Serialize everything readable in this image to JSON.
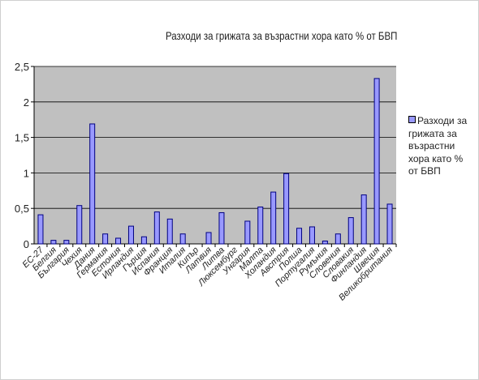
{
  "chart_data": {
    "type": "bar",
    "title": "Разходи за грижата за възрастни хора като % от БВП",
    "xlabel": "",
    "ylabel": "",
    "ylim": [
      0,
      2.5
    ],
    "yticks": [
      "0",
      "0,5",
      "1",
      "1,5",
      "2",
      "2,5"
    ],
    "grid": true,
    "legend_position": "right",
    "categories": [
      "ЕС-27",
      "Белгия",
      "България",
      "Чехия",
      "Дания",
      "Германия",
      "Естония",
      "Ирландия",
      "Гърция",
      "Испания",
      "Франция",
      "Италия",
      "Кипър",
      "Латвия",
      "Литва",
      "Люксембург",
      "Унгария",
      "Малта",
      "Холандия",
      "Австрия",
      "Полша",
      "Португалия",
      "Румъния",
      "Словения",
      "Словакия",
      "Финландия",
      "Швеция",
      "Великобритания"
    ],
    "series": [
      {
        "name": "Разходи за грижата за възрастни хора като % от БВП",
        "values": [
          0.41,
          0.05,
          0.05,
          0.54,
          1.69,
          0.14,
          0.08,
          0.25,
          0.1,
          0.45,
          0.35,
          0.14,
          0.0,
          0.16,
          0.44,
          0.0,
          0.32,
          0.52,
          0.73,
          0.99,
          0.22,
          0.24,
          0.04,
          0.14,
          0.37,
          0.69,
          2.33,
          0.56
        ]
      }
    ]
  },
  "colors": {
    "bar_fill": "#9999ff",
    "bar_stroke": "#000080",
    "plot_bg": "#c0c0c0",
    "grid": "#000000"
  }
}
